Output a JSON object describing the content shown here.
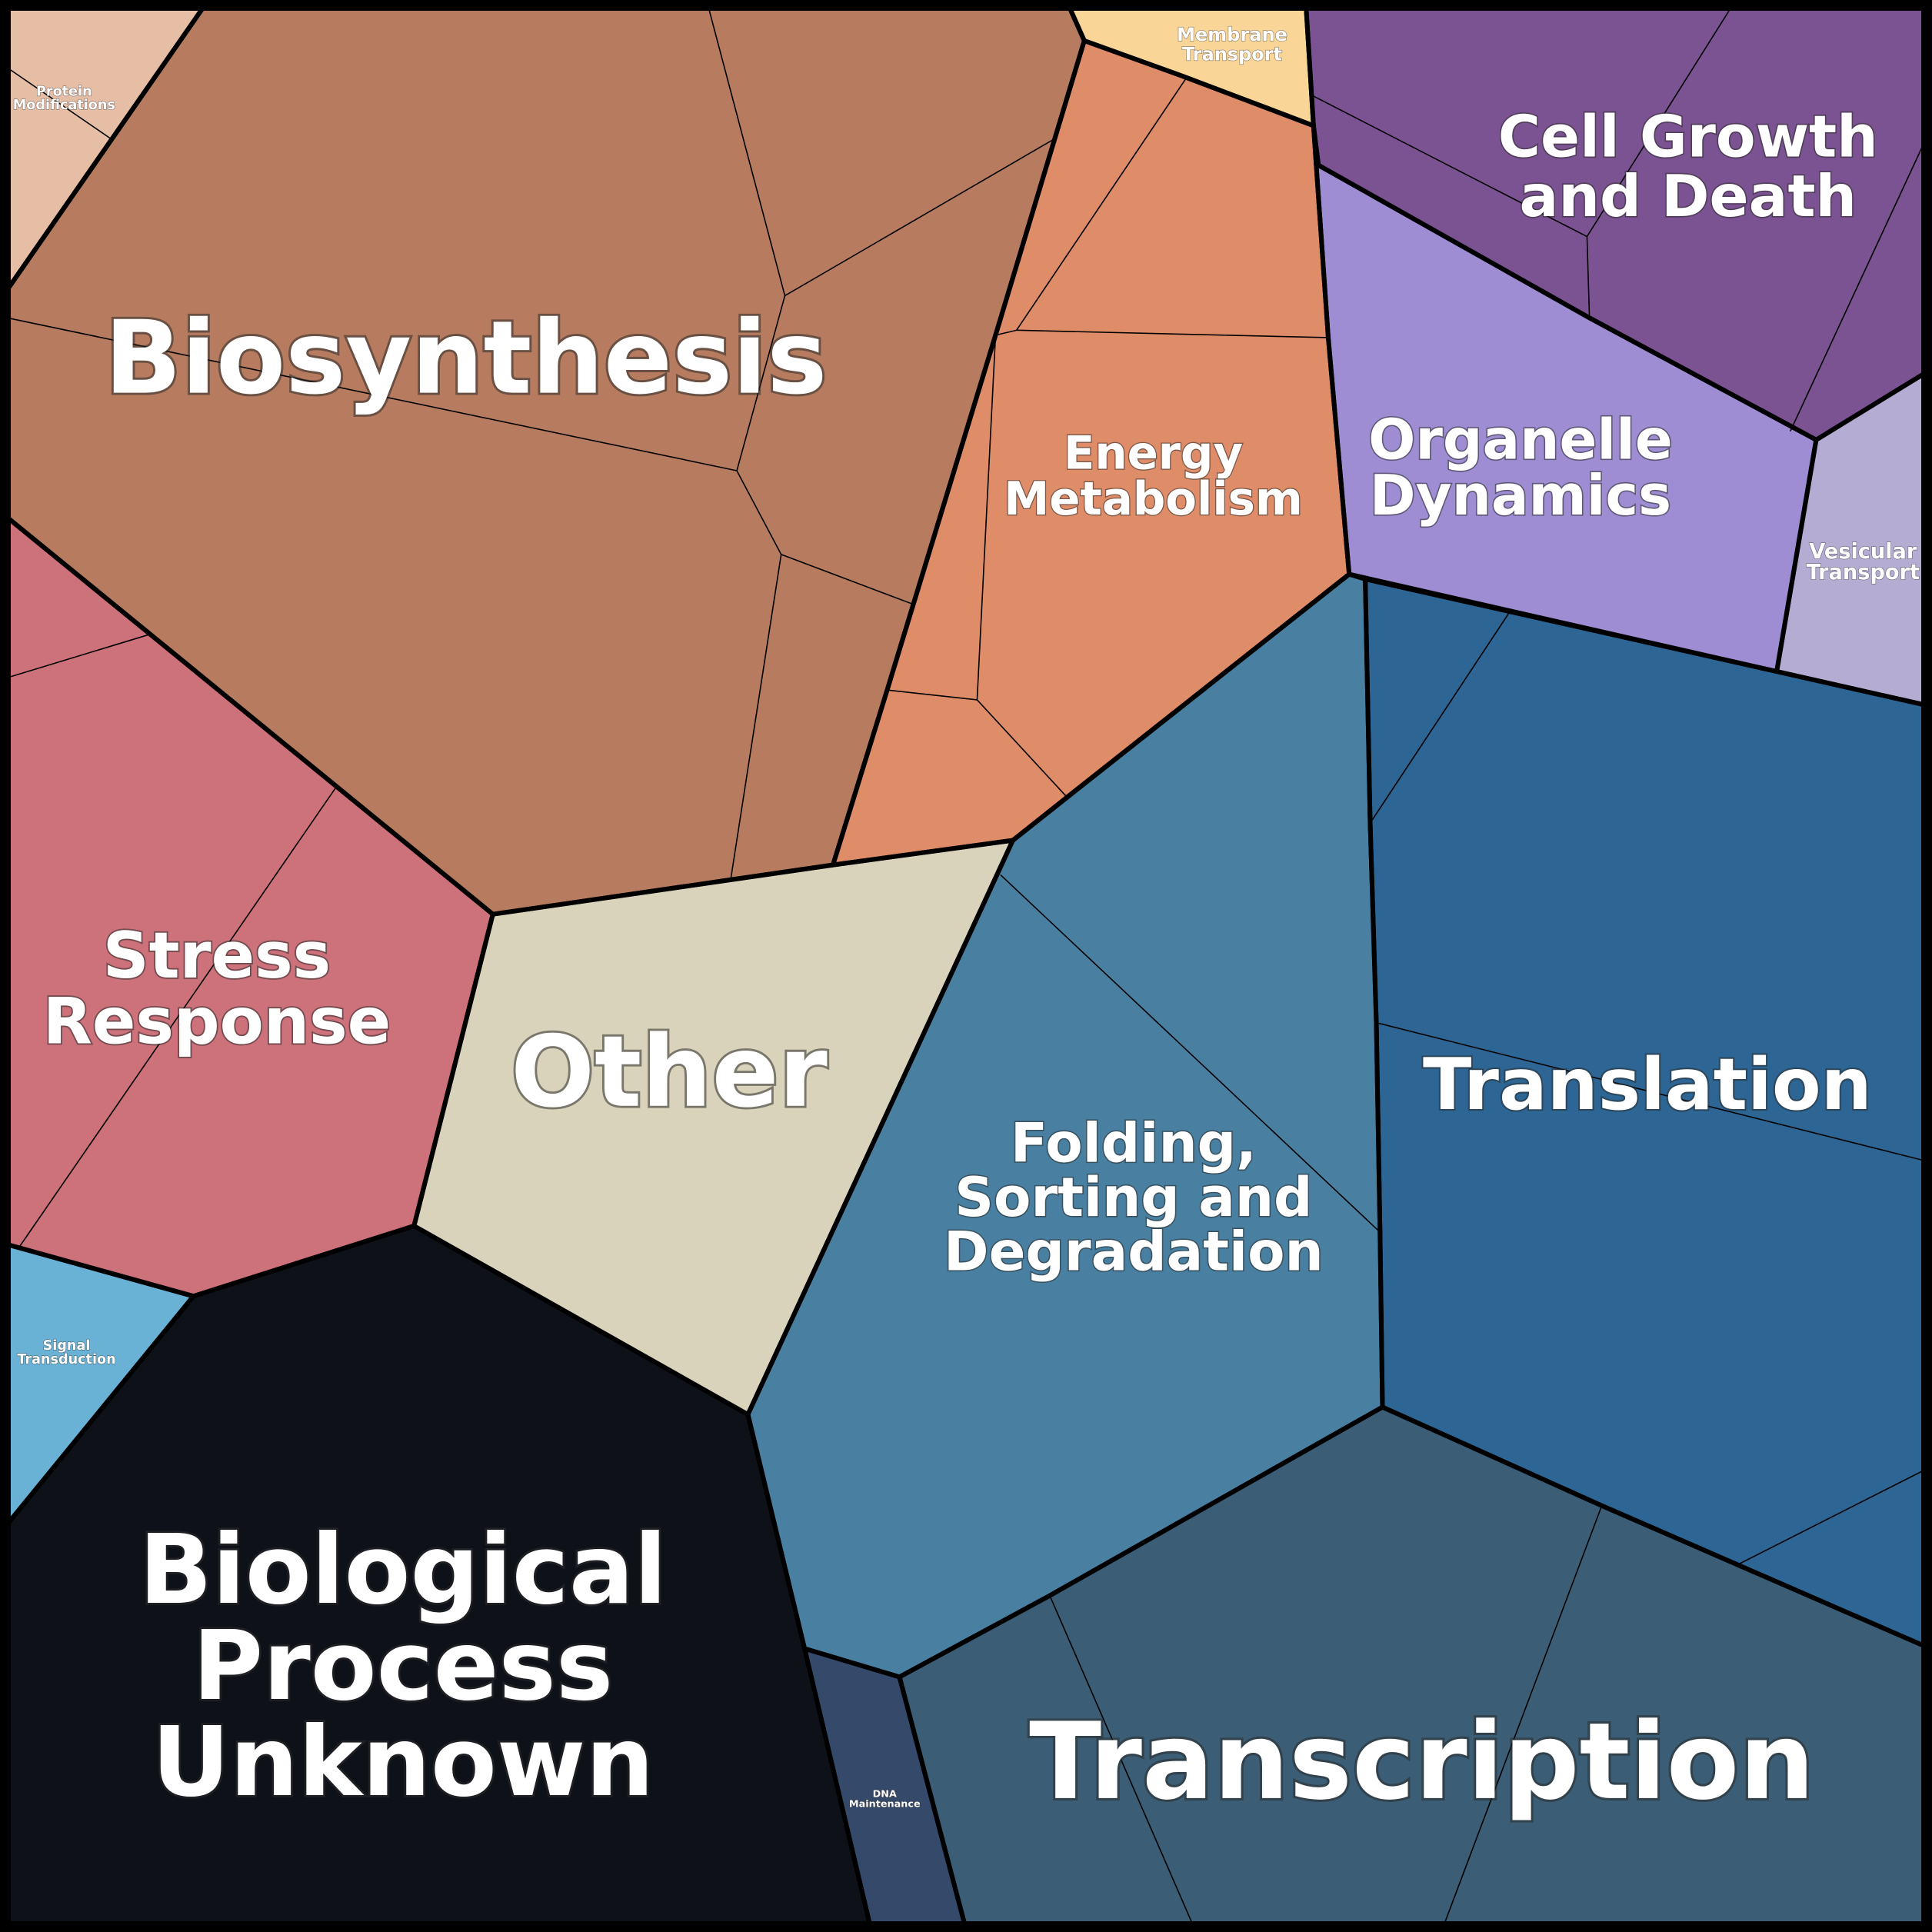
{
  "diagram": {
    "type": "voronoi-treemap",
    "groups": [
      {
        "id": "protein-modifications",
        "label": [
          "Protein",
          "Modifications"
        ],
        "color": "#e6bea6"
      },
      {
        "id": "biosynthesis",
        "label": [
          "Biosynthesis"
        ],
        "color": "#b77c60"
      },
      {
        "id": "membrane-transport",
        "label": [
          "Membrane",
          "Transport"
        ],
        "color": "#fad598"
      },
      {
        "id": "energy-metabolism",
        "label": [
          "Energy",
          "Metabolism"
        ],
        "color": "#df8d69"
      },
      {
        "id": "cell-growth-and-death",
        "label": [
          "Cell Growth",
          "and Death"
        ],
        "color": "#7c5392"
      },
      {
        "id": "organelle-dynamics",
        "label": [
          "Organelle",
          "Dynamics"
        ],
        "color": "#9e8dd2"
      },
      {
        "id": "vesicular-transport",
        "label": [
          "Vesicular",
          "Transport"
        ],
        "color": "#b4acd2"
      },
      {
        "id": "stress-response",
        "label": [
          "Stress",
          "Response"
        ],
        "color": "#cd717b"
      },
      {
        "id": "other",
        "label": [
          "Other"
        ],
        "color": "#d8d3ba"
      },
      {
        "id": "folding-sorting-and-degradation",
        "label": [
          "Folding,",
          "Sorting and",
          "Degradation"
        ],
        "color": "#4980a2"
      },
      {
        "id": "translation",
        "label": [
          "Translation"
        ],
        "color": "#2d6694"
      },
      {
        "id": "signal-transduction",
        "label": [
          "Signal",
          "Transduction"
        ],
        "color": "#6ab2d5"
      },
      {
        "id": "biological-process-unknown",
        "label": [
          "Biological",
          "Process",
          "Unknown"
        ],
        "color": "#0e1118"
      },
      {
        "id": "dna-maintenance",
        "label": [
          "DNA",
          "Maintenance"
        ],
        "color": "#354a6a"
      },
      {
        "id": "transcription",
        "label": [
          "Transcription"
        ],
        "color": "#3b5e76"
      }
    ]
  }
}
